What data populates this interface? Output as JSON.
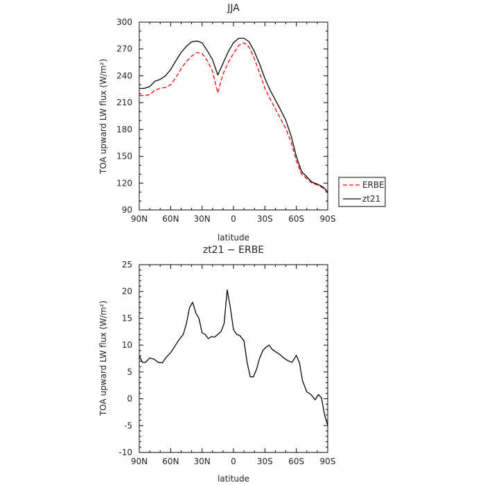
{
  "chart_data": [
    {
      "type": "line",
      "title": "JJA",
      "xlabel": "latitude",
      "ylabel": "TOA upward LW flux (W/m²)",
      "xticks": [
        "90N",
        "60N",
        "30N",
        "0",
        "30S",
        "60S",
        "90S"
      ],
      "xlim": [
        90,
        -90
      ],
      "ylim": [
        90,
        300
      ],
      "yticks": [
        90,
        120,
        150,
        180,
        210,
        240,
        270,
        300
      ],
      "legend": "right",
      "x": [
        90,
        85,
        80,
        75,
        70,
        65,
        60,
        55,
        50,
        45,
        40,
        35,
        30,
        25,
        20,
        15,
        10,
        5,
        0,
        -5,
        -10,
        -15,
        -20,
        -25,
        -30,
        -35,
        -40,
        -45,
        -50,
        -55,
        -60,
        -65,
        -70,
        -75,
        -80,
        -85,
        -88,
        -90
      ],
      "series": [
        {
          "name": "ERBE",
          "color": "#ff0000",
          "dash": "dashed",
          "values": [
            218,
            218,
            219,
            224,
            226,
            227,
            230,
            238,
            248,
            256,
            262,
            266,
            265,
            257,
            245,
            221,
            242,
            255,
            265,
            274,
            277,
            272,
            259,
            243,
            226,
            214,
            203,
            192,
            181,
            166,
            145,
            130,
            125,
            120,
            118,
            115,
            112,
            109
          ]
        },
        {
          "name": "zt21",
          "color": "#000000",
          "dash": "solid",
          "values": [
            226,
            226,
            228,
            234,
            236,
            240,
            247,
            257,
            266,
            273,
            278,
            279,
            277,
            268,
            258,
            241,
            254,
            267,
            277,
            282,
            282,
            278,
            267,
            253,
            237,
            224,
            213,
            202,
            190,
            173,
            150,
            133,
            127,
            121,
            119,
            116,
            113,
            109
          ]
        }
      ]
    },
    {
      "type": "line",
      "title": "zt21 − ERBE",
      "xlabel": "latitude",
      "ylabel": "TOA upward LW flux (W/m²)",
      "xticks": [
        "90N",
        "60N",
        "30N",
        "0",
        "30S",
        "60S",
        "90S"
      ],
      "xlim": [
        90,
        -90
      ],
      "ylim": [
        -10,
        25
      ],
      "yticks": [
        -10,
        -5,
        0,
        5,
        10,
        15,
        20,
        25
      ],
      "legend": "none",
      "x": [
        90,
        87,
        84,
        80,
        76,
        72,
        68,
        64,
        60,
        56,
        52,
        48,
        45,
        42,
        39,
        36,
        33,
        30,
        27,
        24,
        21,
        18,
        15,
        12,
        9,
        6,
        3,
        0,
        -3,
        -6,
        -10,
        -13,
        -16,
        -19,
        -22,
        -25,
        -28,
        -31,
        -34,
        -37,
        -40,
        -44,
        -48,
        -52,
        -56,
        -60,
        -63,
        -66,
        -70,
        -74,
        -78,
        -81,
        -84,
        -87,
        -90
      ],
      "series": [
        {
          "name": "",
          "color": "#000000",
          "dash": "solid",
          "values": [
            8,
            6.8,
            6.8,
            7.6,
            7.4,
            6.8,
            6.7,
            7.8,
            8.6,
            9.8,
            11,
            12,
            14,
            17,
            18,
            16,
            15,
            12.3,
            12,
            11.2,
            11.6,
            11.5,
            12,
            12.5,
            14,
            20.3,
            17,
            12.9,
            12,
            11.8,
            10.8,
            6.8,
            4.1,
            4.1,
            5.5,
            7.6,
            9,
            9.6,
            10,
            9.2,
            8.8,
            8.3,
            7.6,
            7.1,
            6.8,
            8.1,
            6.7,
            3.3,
            1.3,
            0.8,
            -0.2,
            0.8,
            0.2,
            -3,
            -5
          ]
        }
      ]
    }
  ]
}
